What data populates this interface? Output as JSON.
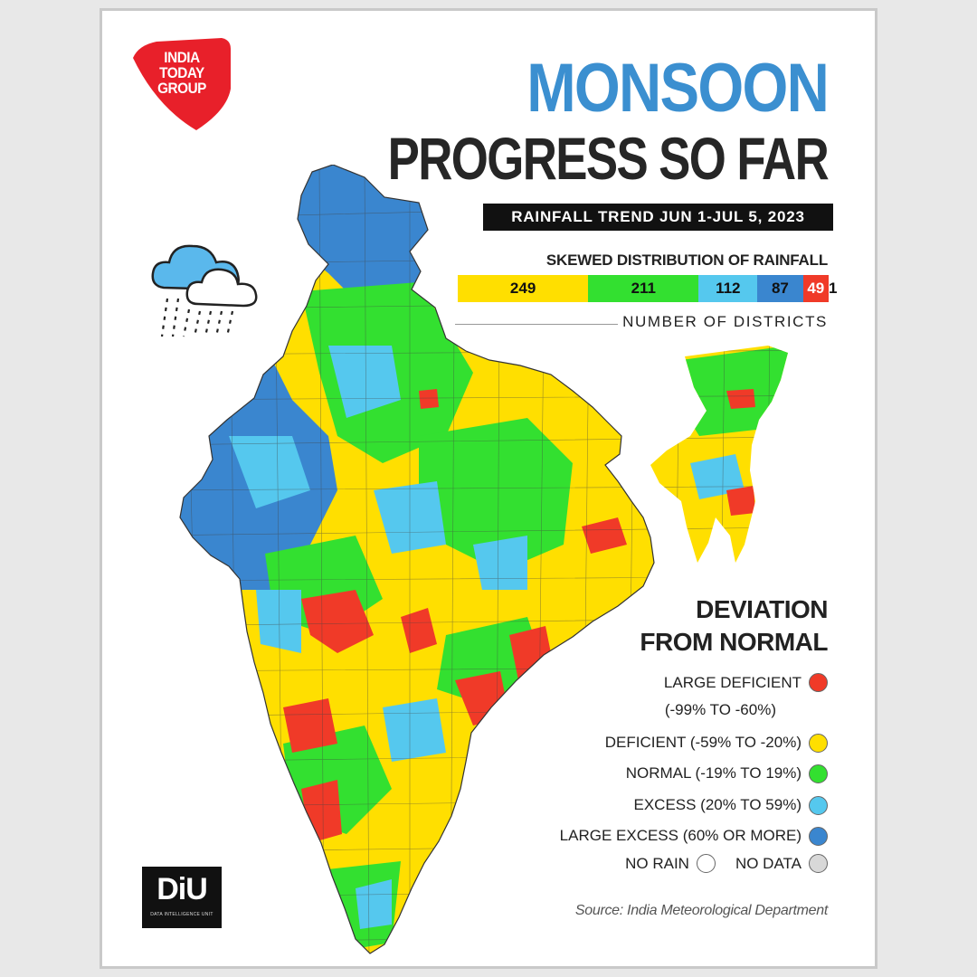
{
  "branding": {
    "logo_lines": [
      "INDIA",
      "TODAY",
      "GROUP"
    ],
    "diu_text": "DiU",
    "diu_subtitle": "DATA INTELLIGENCE UNIT"
  },
  "title": {
    "line1": "MONSOON",
    "line2": "PROGRESS SO FAR"
  },
  "trend_label": "RAINFALL TREND JUN 1-JUL 5, 2023",
  "distribution": {
    "title": "SKEWED DISTRIBUTION OF RAINFALL",
    "caption": "NUMBER OF DISTRICTS",
    "segments": [
      {
        "label": "249",
        "value": 249,
        "color": "#ffdf00"
      },
      {
        "label": "211",
        "value": 211,
        "color": "#33e030"
      },
      {
        "label": "112",
        "value": 112,
        "color": "#55c8ee"
      },
      {
        "label": "87",
        "value": 87,
        "color": "#3a86cf"
      },
      {
        "label": "49",
        "value": 49,
        "color": "#f03a28"
      }
    ],
    "tail_label": "1",
    "tail_value": 1
  },
  "legend": {
    "title_line1": "DEVIATION",
    "title_line2": "FROM NORMAL",
    "items": [
      {
        "line1": "LARGE DEFICIENT",
        "line2": "(-99% TO -60%)",
        "color": "#f03a28"
      },
      {
        "line1": "DEFICIENT (-59% TO -20%)",
        "line2": "",
        "color": "#ffdf00"
      },
      {
        "line1": "NORMAL (-19% TO 19%)",
        "line2": "",
        "color": "#33e030"
      },
      {
        "line1": "EXCESS (20% TO 59%)",
        "line2": "",
        "color": "#55c8ee"
      },
      {
        "line1": "LARGE EXCESS (60% OR MORE)",
        "line2": "",
        "color": "#3a86cf"
      }
    ],
    "no_rain": {
      "label": "NO RAIN",
      "color": "#ffffff"
    },
    "no_data": {
      "label": "NO DATA",
      "color": "#d8d8d8"
    }
  },
  "source": "Source: India Meteorological Department",
  "icons": {
    "cloud": "rain-cloud-icon"
  }
}
